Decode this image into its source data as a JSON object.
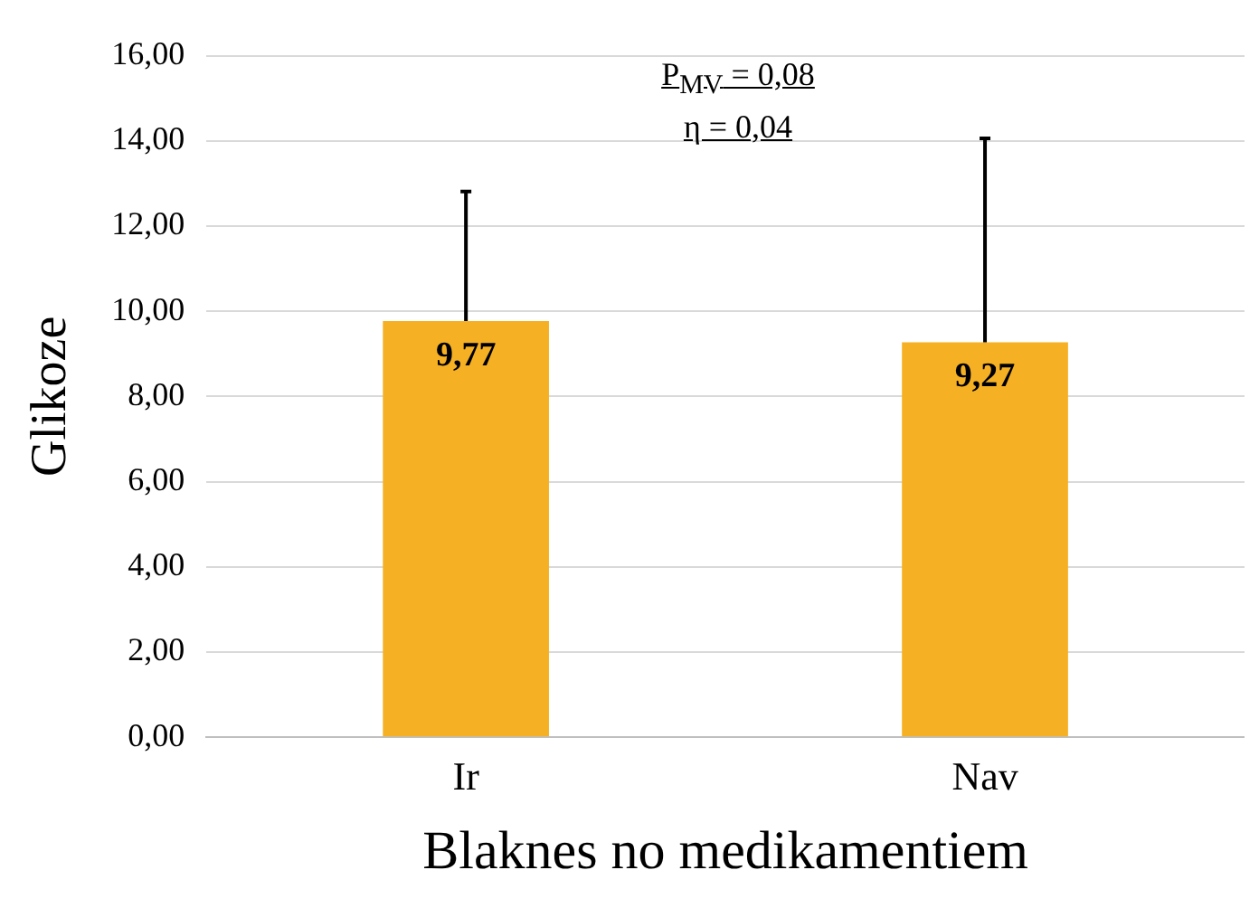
{
  "chart_data": {
    "type": "bar",
    "xlabel": "Blaknes no medikamentiem",
    "ylabel": "Glikoze",
    "categories": [
      "Ir",
      "Nav"
    ],
    "values": [
      9.77,
      9.27
    ],
    "errors": [
      [
        9.77,
        12.81
      ],
      [
        9.27,
        14.06
      ]
    ],
    "color": "#f6b024",
    "value_labels": [
      "9,77",
      "9,27"
    ],
    "ylim": [
      0,
      16
    ],
    "yticks": [
      {
        "value": 0,
        "label": "0,00"
      },
      {
        "value": 2,
        "label": "2,00"
      },
      {
        "value": 4,
        "label": "4,00"
      },
      {
        "value": 6,
        "label": "6,00"
      },
      {
        "value": 8,
        "label": "8,00"
      },
      {
        "value": 10,
        "label": "10,00"
      },
      {
        "value": 12,
        "label": "12,00"
      },
      {
        "value": 14,
        "label": "14,00"
      },
      {
        "value": 16,
        "label": "16,00"
      }
    ],
    "grid": "y",
    "annotations": [
      "P$_{MV}$ = 0,08",
      "η = 0,04"
    ]
  }
}
